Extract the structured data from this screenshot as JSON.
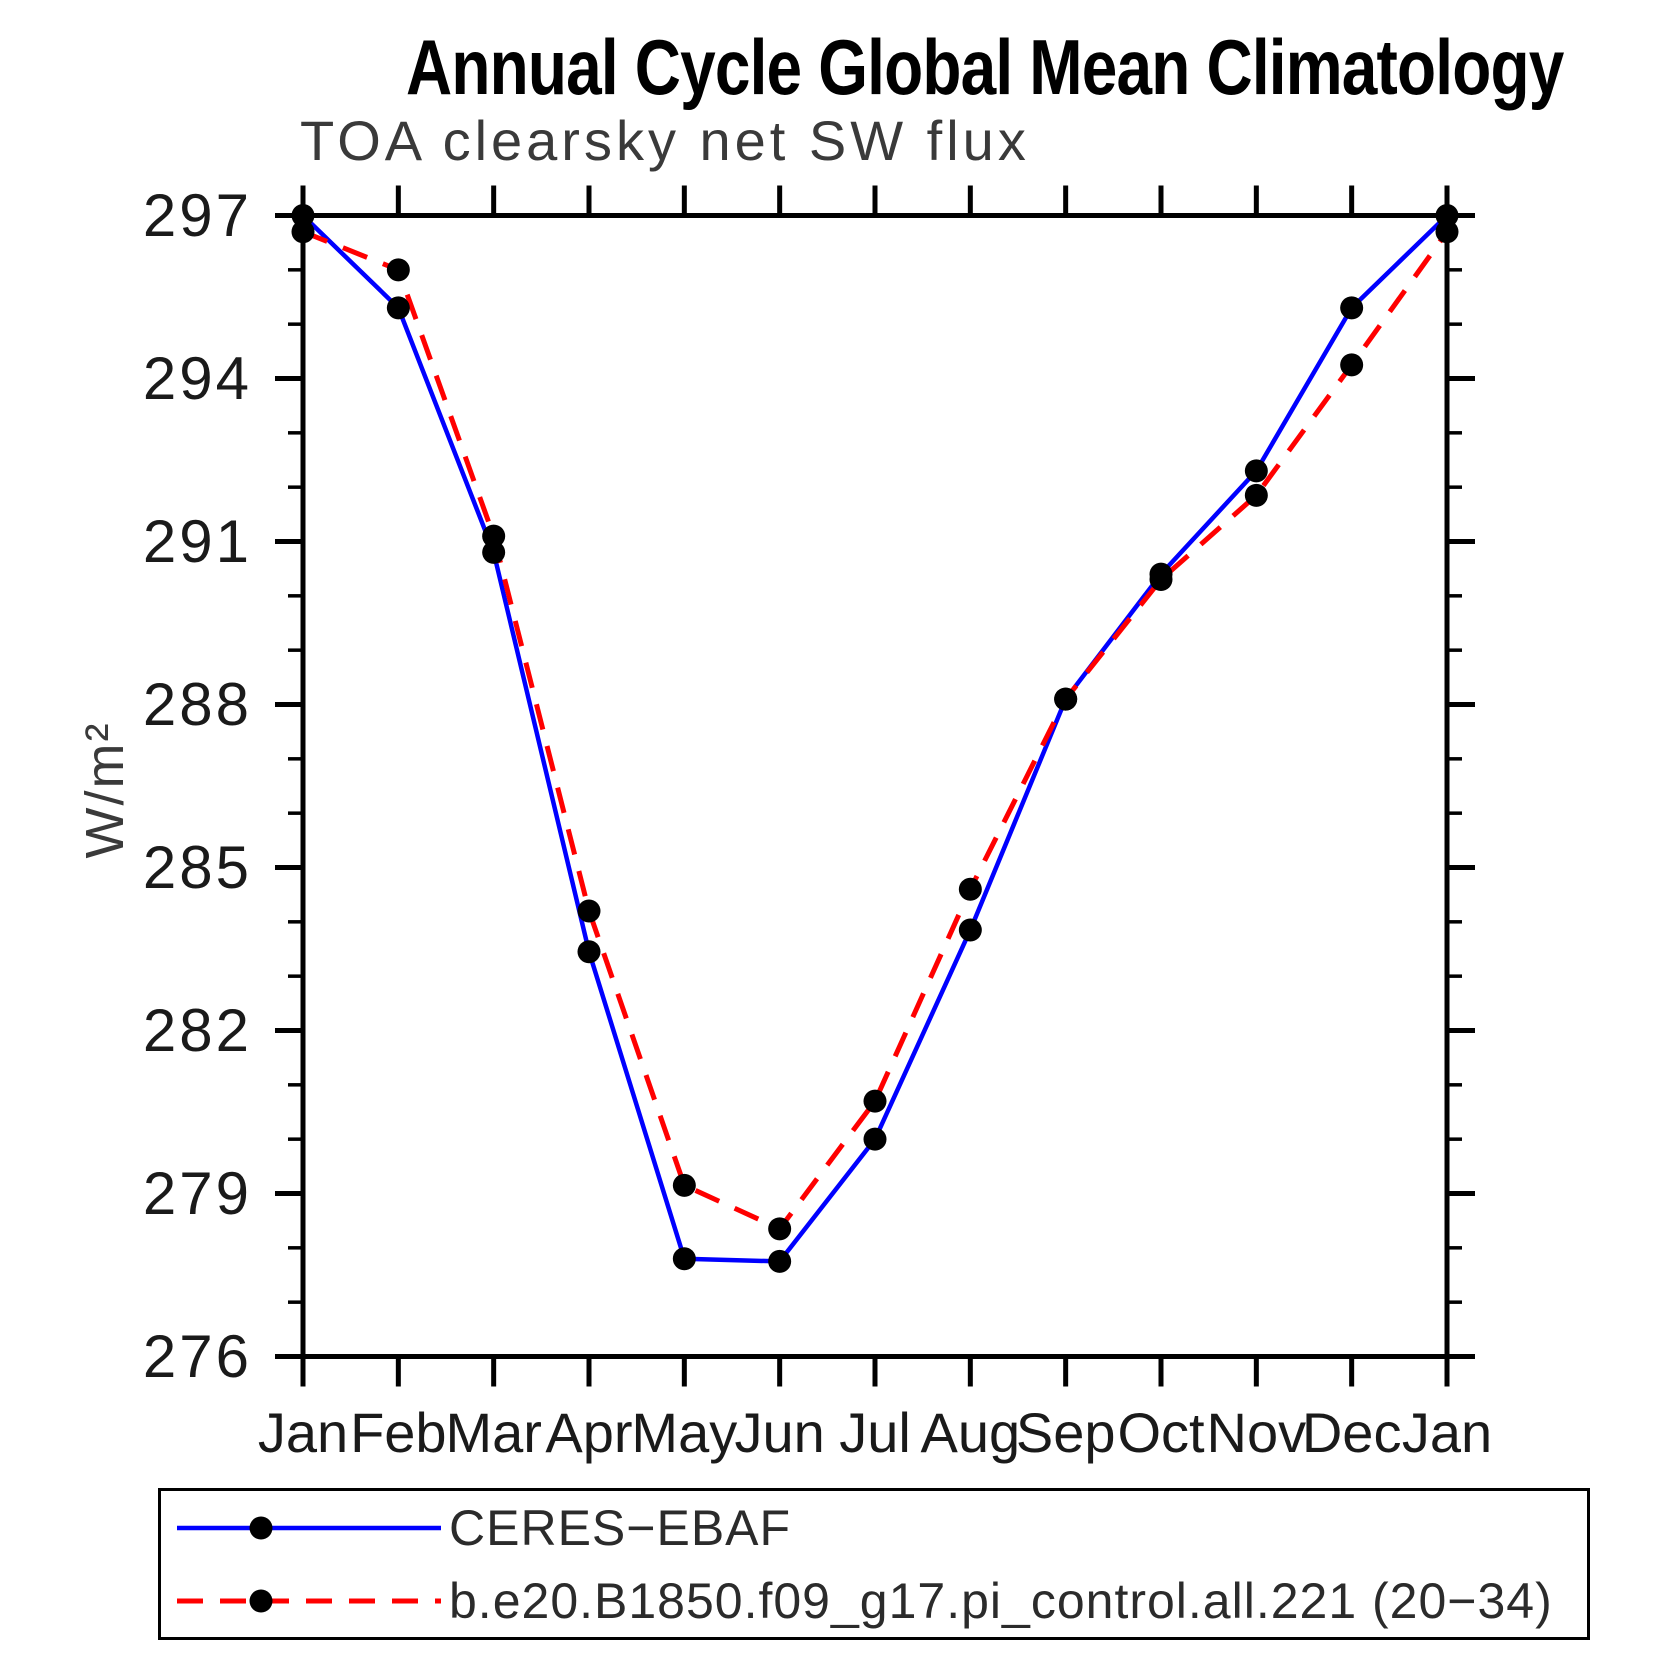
{
  "title": "Annual Cycle Global Mean Climatology",
  "subtitle": "TOA clearsky net SW flux",
  "legend": {
    "entry1": "CERES−EBAF",
    "entry2": "b.e20.B1850.f09_g17.pi_control.all.221 (20−34)"
  },
  "colors": {
    "axis": "#000000",
    "obs_line": "#0000ff",
    "model_line": "#ff0000",
    "marker": "#000000",
    "background": "#ffffff"
  },
  "chart_data": {
    "type": "line",
    "title": "Annual Cycle Global Mean Climatology",
    "subtitle": "TOA clearsky net SW flux",
    "xlabel": "",
    "ylabel": "W/m²",
    "categories": [
      "Jan",
      "Feb",
      "Mar",
      "Apr",
      "May",
      "Jun",
      "Jul",
      "Aug",
      "Sep",
      "Oct",
      "Nov",
      "Dec",
      "Jan"
    ],
    "ylim": [
      276,
      297
    ],
    "ytick_major": [
      276,
      279,
      282,
      285,
      288,
      291,
      294,
      297
    ],
    "ytick_labels": [
      "276",
      "279",
      "282",
      "285",
      "288",
      "291",
      "294",
      "297"
    ],
    "ytick_minor_step": 1,
    "grid": false,
    "legend_position": "bottom",
    "tick_style": "outward-all-four-sides",
    "series": [
      {
        "name": "CERES−EBAF",
        "color": "#0000ff",
        "line_style": "solid",
        "marker": "black-dot",
        "values": [
          297.0,
          295.3,
          290.8,
          283.45,
          277.8,
          277.75,
          280.0,
          283.85,
          288.1,
          290.4,
          292.3,
          295.3,
          297.0
        ]
      },
      {
        "name": "b.e20.B1850.f09_g17.pi_control.all.221 (20−34)",
        "color": "#ff0000",
        "line_style": "dashed",
        "marker": "black-dot",
        "values": [
          296.7,
          296.0,
          291.1,
          284.2,
          279.15,
          278.35,
          280.7,
          284.6,
          288.1,
          290.3,
          291.85,
          294.25,
          296.7
        ]
      }
    ]
  }
}
